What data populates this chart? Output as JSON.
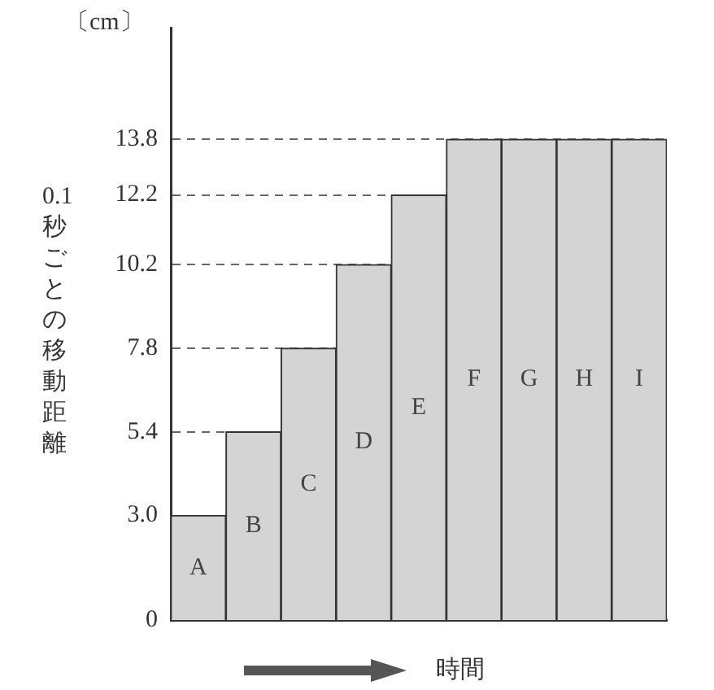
{
  "chart_data": {
    "type": "bar",
    "xlabel": "時間",
    "ylabel": "0.1秒ごとの移動距離",
    "annotations": [
      "〔cm〕"
    ],
    "categories": [
      "A",
      "B",
      "C",
      "D",
      "E",
      "F",
      "G",
      "H",
      "I"
    ],
    "values": [
      3,
      5.4,
      7.8,
      10.2,
      12.2,
      13.8,
      13.8,
      13.8,
      13.8
    ],
    "color": "#d4d4d4",
    "ylim": [
      0,
      17
    ],
    "yticks": [
      0,
      {
        "value": 3,
        "label": "3.0"
      },
      5.4,
      7.8,
      10.2,
      12.2,
      13.8
    ],
    "grid": "y",
    "line_style": "dashed",
    "legend": false
  }
}
